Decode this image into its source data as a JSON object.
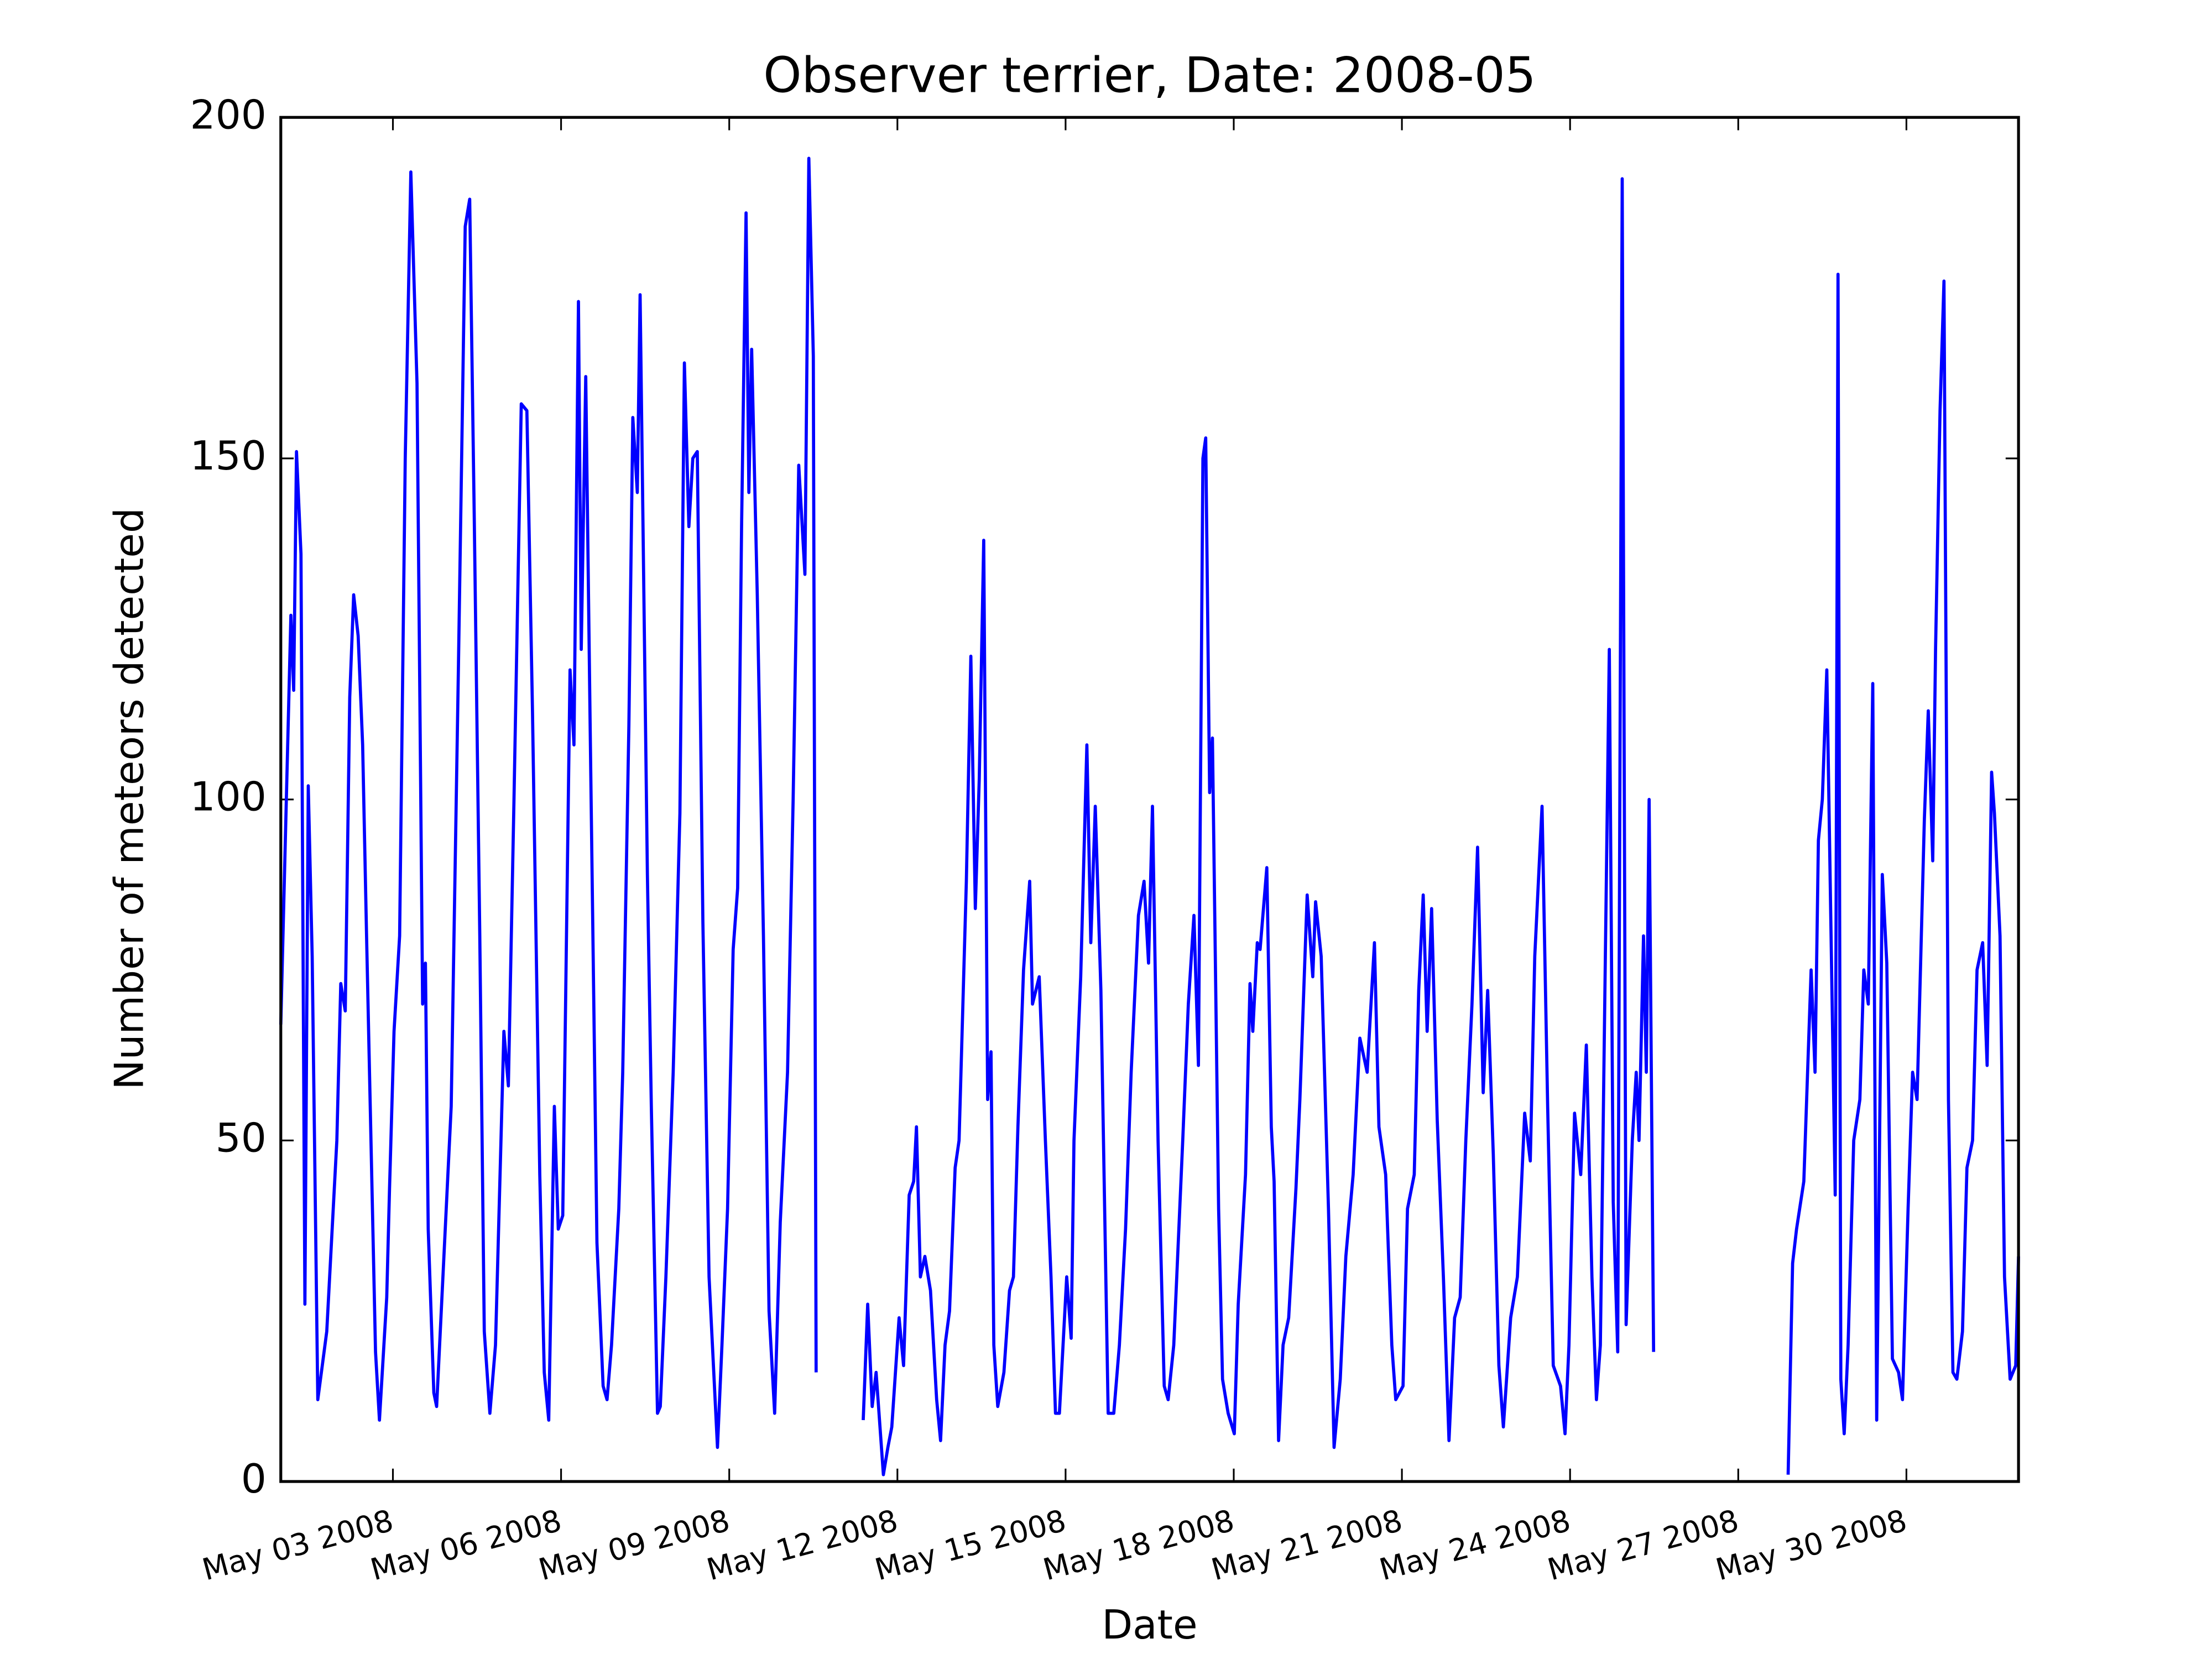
{
  "chart_data": {
    "type": "line",
    "title": "Observer terrier, Date: 2008-05",
    "xlabel": "Date",
    "ylabel": "Number of meteors detected",
    "color": "#0000ff",
    "xlim": [
      1,
      32
    ],
    "ylim": [
      0,
      200
    ],
    "xticks": [
      {
        "value": 3,
        "label": "May 03 2008"
      },
      {
        "value": 6,
        "label": "May 06 2008"
      },
      {
        "value": 9,
        "label": "May 09 2008"
      },
      {
        "value": 12,
        "label": "May 12 2008"
      },
      {
        "value": 15,
        "label": "May 15 2008"
      },
      {
        "value": 18,
        "label": "May 18 2008"
      },
      {
        "value": 21,
        "label": "May 21 2008"
      },
      {
        "value": 24,
        "label": "May 24 2008"
      },
      {
        "value": 27,
        "label": "May 27 2008"
      },
      {
        "value": 30,
        "label": "May 30 2008"
      }
    ],
    "yticks": [
      0,
      50,
      100,
      150,
      200
    ],
    "x": [
      1.0,
      1.18,
      1.23,
      1.28,
      1.36,
      1.43,
      1.49,
      1.56,
      1.66,
      1.82,
      2.0,
      2.07,
      2.15,
      2.23,
      2.3,
      2.38,
      2.46,
      2.53,
      2.69,
      2.76,
      2.89,
      2.94,
      3.02,
      3.12,
      3.22,
      3.32,
      3.43,
      3.53,
      3.58,
      3.63,
      3.73,
      3.78,
      3.91,
      4.04,
      4.17,
      4.29,
      4.37,
      4.45,
      4.55,
      4.63,
      4.73,
      4.83,
      4.98,
      5.06,
      5.16,
      5.29,
      5.39,
      5.49,
      5.62,
      5.7,
      5.78,
      5.88,
      5.95,
      6.03,
      6.16,
      6.23,
      6.31,
      6.36,
      6.44,
      6.52,
      6.64,
      6.75,
      6.82,
      6.9,
      7.03,
      7.1,
      7.21,
      7.28,
      7.36,
      7.41,
      7.54,
      7.61,
      7.72,
      7.77,
      7.87,
      8.0,
      8.12,
      8.2,
      8.28,
      8.35,
      8.43,
      8.53,
      8.64,
      8.79,
      8.87,
      8.97,
      9.07,
      9.15,
      9.22,
      9.3,
      9.35,
      9.4,
      9.5,
      9.61,
      9.71,
      9.81,
      9.91,
      10.04,
      10.14,
      10.24,
      10.35,
      10.42,
      10.5,
      10.55,
      11.0,
      11.39,
      11.47,
      11.55,
      11.62,
      11.75,
      11.83,
      11.9,
      12.03,
      12.11,
      12.21,
      12.29,
      12.34,
      12.41,
      12.49,
      12.59,
      12.7,
      12.77,
      12.85,
      12.93,
      13.03,
      13.1,
      13.23,
      13.31,
      13.39,
      13.46,
      13.54,
      13.61,
      13.67,
      13.72,
      13.79,
      13.9,
      14.0,
      14.07,
      14.15,
      14.25,
      14.36,
      14.41,
      14.53,
      14.64,
      14.74,
      14.82,
      14.89,
      15.02,
      15.1,
      15.15,
      15.27,
      15.38,
      15.45,
      15.53,
      15.63,
      15.76,
      15.86,
      15.96,
      16.07,
      16.17,
      16.3,
      16.4,
      16.48,
      16.55,
      16.65,
      16.76,
      16.83,
      16.93,
      17.09,
      17.19,
      17.29,
      17.37,
      17.45,
      17.5,
      17.57,
      17.62,
      17.73,
      17.8,
      17.9,
      18.01,
      18.08,
      18.21,
      18.29,
      18.34,
      18.42,
      18.47,
      18.54,
      18.59,
      18.67,
      18.72,
      18.8,
      18.88,
      18.98,
      19.11,
      19.18,
      19.31,
      19.41,
      19.46,
      19.56,
      19.69,
      19.79,
      19.9,
      20.0,
      20.13,
      20.25,
      20.38,
      20.51,
      20.59,
      20.71,
      20.82,
      20.89,
      21.02,
      21.1,
      21.22,
      21.3,
      21.38,
      21.45,
      21.53,
      21.63,
      21.74,
      21.84,
      21.94,
      22.04,
      22.14,
      22.25,
      22.35,
      22.45,
      22.53,
      22.63,
      22.73,
      22.81,
      22.94,
      23.06,
      23.19,
      23.29,
      23.37,
      23.5,
      23.6,
      23.7,
      23.83,
      23.91,
      23.98,
      24.08,
      24.19,
      24.29,
      24.39,
      24.47,
      24.54,
      24.7,
      24.77,
      24.85,
      24.93,
      25.0,
      25.11,
      25.18,
      25.23,
      25.31,
      25.36,
      25.41,
      25.49,
      26.7,
      27.89,
      27.97,
      28.04,
      28.17,
      28.3,
      28.37,
      28.43,
      28.5,
      28.58,
      28.73,
      28.78,
      28.83,
      28.89,
      28.96,
      29.06,
      29.17,
      29.24,
      29.32,
      29.4,
      29.47,
      29.57,
      29.65,
      29.75,
      29.86,
      29.93,
      30.03,
      30.11,
      30.19,
      30.32,
      30.39,
      30.47,
      30.52,
      30.6,
      30.67,
      30.75,
      30.83,
      30.9,
      31.0,
      31.08,
      31.18,
      31.26,
      31.36,
      31.44,
      31.52,
      31.57,
      31.67,
      31.75,
      31.85,
      31.95,
      32.0
    ],
    "values": [
      67,
      127,
      116,
      151,
      136,
      26,
      102,
      77,
      12,
      22,
      50,
      73,
      69,
      115,
      130,
      124,
      108,
      80,
      19,
      9,
      27,
      43,
      66,
      80,
      150,
      192,
      161,
      70,
      76,
      37,
      13,
      11,
      33,
      55,
      120,
      184,
      188,
      142,
      80,
      22,
      10,
      20,
      66,
      58,
      100,
      158,
      157,
      113,
      45,
      16,
      9,
      55,
      37,
      39,
      119,
      108,
      173,
      122,
      162,
      110,
      35,
      14,
      12,
      20,
      40,
      60,
      111,
      156,
      145,
      174,
      89,
      55,
      10,
      11,
      30,
      60,
      98,
      164,
      140,
      150,
      151,
      82,
      30,
      5,
      20,
      40,
      78,
      87,
      140,
      186,
      145,
      166,
      130,
      80,
      25,
      10,
      38,
      60,
      100,
      149,
      133,
      194,
      165,
      16,
      null,
      9,
      26,
      11,
      16,
      1,
      5,
      8,
      24,
      17,
      42,
      44,
      52,
      30,
      33,
      28,
      12,
      6,
      20,
      25,
      46,
      50,
      88,
      121,
      84,
      103,
      138,
      56,
      63,
      20,
      11,
      16,
      28,
      30,
      52,
      75,
      88,
      70,
      74,
      50,
      30,
      10,
      10,
      30,
      21,
      50,
      74,
      108,
      79,
      99,
      72,
      10,
      10,
      20,
      37,
      60,
      83,
      88,
      76,
      99,
      50,
      14,
      12,
      20,
      50,
      70,
      83,
      61,
      150,
      153,
      101,
      109,
      40,
      15,
      10,
      7,
      26,
      45,
      73,
      66,
      79,
      78,
      85,
      90,
      52,
      44,
      6,
      20,
      24,
      43,
      56,
      86,
      74,
      85,
      77,
      40,
      5,
      15,
      33,
      45,
      65,
      60,
      79,
      52,
      45,
      20,
      12,
      14,
      40,
      45,
      72,
      86,
      66,
      84,
      53,
      30,
      6,
      24,
      27,
      50,
      70,
      93,
      57,
      72,
      48,
      17,
      8,
      24,
      30,
      54,
      47,
      77,
      99,
      55,
      17,
      14,
      7,
      20,
      54,
      45,
      64,
      30,
      12,
      20,
      122,
      41,
      19,
      191,
      23,
      50,
      60,
      50,
      80,
      60,
      100,
      19,
      null,
      1,
      32,
      37,
      44,
      75,
      60,
      94,
      100,
      119,
      42,
      177,
      15,
      7,
      20,
      50,
      56,
      75,
      70,
      117,
      9,
      89,
      76,
      18,
      16,
      12,
      40,
      60,
      56,
      97,
      113,
      91,
      122,
      157,
      176,
      56,
      16,
      15,
      22,
      46,
      50,
      75,
      79,
      61,
      104,
      98,
      80,
      30,
      15,
      17,
      33
    ]
  }
}
